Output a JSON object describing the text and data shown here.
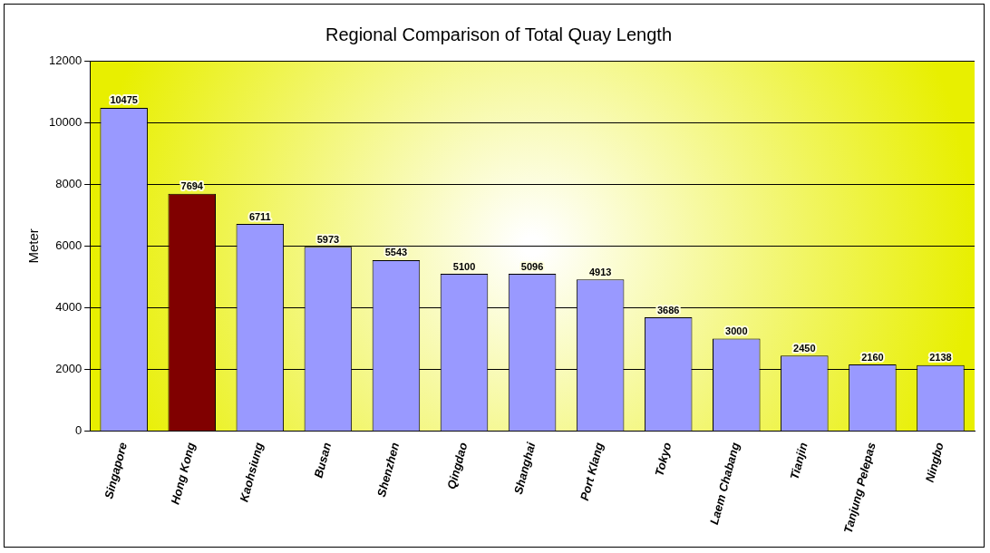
{
  "chart_data": {
    "type": "bar",
    "title": "Regional Comparison of Total Quay Length",
    "ylabel": "Meter",
    "categories": [
      "Singapore",
      "Hong Kong",
      "Kaohsiung",
      "Busan",
      "Shenzhen",
      "Qingdao",
      "Shanghai",
      "Port Klang",
      "Tokyo",
      "Laem Chabang",
      "Tianjin",
      "Tanjung Pelepas",
      "Ningbo"
    ],
    "values": [
      10475,
      7694,
      6711,
      5973,
      5543,
      5100,
      5096,
      4913,
      3686,
      3000,
      2450,
      2160,
      2138
    ],
    "colors": [
      "#9999ff",
      "#800000",
      "#9999ff",
      "#9999ff",
      "#9999ff",
      "#9999ff",
      "#9999ff",
      "#9999ff",
      "#9999ff",
      "#9999ff",
      "#9999ff",
      "#9999ff",
      "#9999ff"
    ],
    "ylim": [
      0,
      12000
    ],
    "yticks": [
      0,
      2000,
      4000,
      6000,
      8000,
      10000,
      12000
    ],
    "grid": "y",
    "data_labels": true
  }
}
